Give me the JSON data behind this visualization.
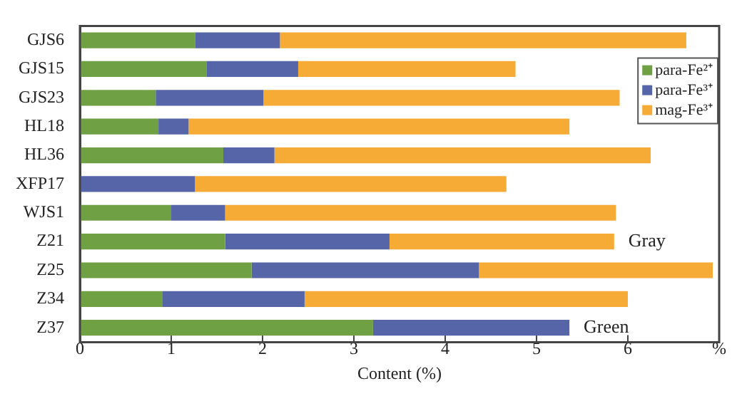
{
  "chart_data": {
    "type": "bar",
    "orientation": "horizontal",
    "stacked": true,
    "xlabel": "Content (%)",
    "categories": [
      "GJS6",
      "GJS15",
      "GJS23",
      "HL18",
      "HL36",
      "XFP17",
      "WJS1",
      "Z21",
      "Z25",
      "Z34",
      "Z37"
    ],
    "series": [
      {
        "name": "para-Fe²⁺",
        "color": "#70a044",
        "values": [
          1.26,
          1.39,
          0.83,
          0.86,
          1.57,
          0,
          1.0,
          1.59,
          1.88,
          0.9,
          3.21
        ]
      },
      {
        "name": "para-Fe³⁺",
        "color": "#5565a8",
        "values": [
          0.93,
          1.0,
          1.18,
          0.33,
          0.56,
          1.26,
          0.59,
          1.8,
          2.49,
          1.56,
          2.15
        ]
      },
      {
        "name": "mag-Fe³⁺",
        "color": "#f5ab35",
        "values": [
          4.45,
          2.38,
          3.9,
          4.17,
          4.12,
          3.41,
          4.28,
          2.46,
          2.56,
          3.54,
          0
        ]
      }
    ],
    "xlim": [
      0,
      7
    ],
    "xticks": [
      0,
      1,
      2,
      3,
      4,
      5,
      6,
      {
        "value": 7,
        "label": "%"
      }
    ],
    "annotations": [
      {
        "text": "Gray",
        "x": 5.85,
        "y": "Z21"
      },
      {
        "text": "Green",
        "x": 5.36,
        "y": "Z37"
      }
    ],
    "legend": "top right",
    "grid": false
  }
}
